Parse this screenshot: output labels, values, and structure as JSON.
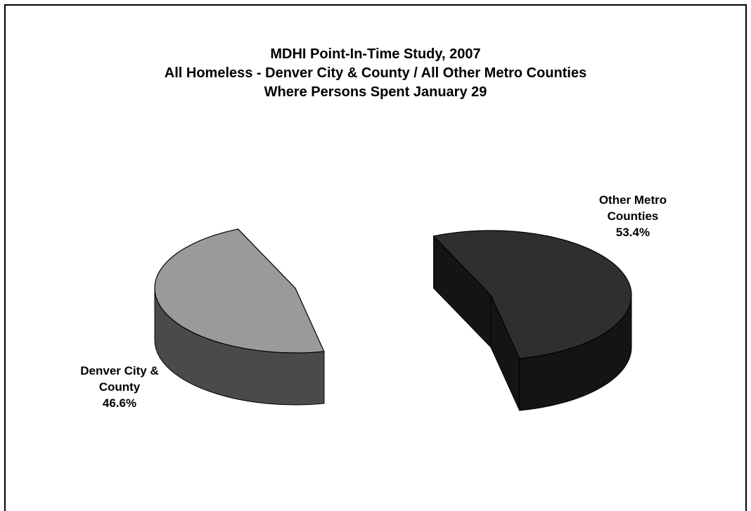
{
  "chart_data": {
    "type": "pie",
    "title_lines": [
      "MDHI Point-In-Time Study, 2007",
      "All Homeless - Denver City & County / All Other Metro Counties",
      "Where Persons Spent January 29"
    ],
    "slices": [
      {
        "label_lines": [
          "Denver City &",
          "County"
        ],
        "value": 46.6,
        "value_label": "46.6%",
        "color": "#9a9a9a",
        "side_color": "#4a4a4a"
      },
      {
        "label_lines": [
          "Other Metro",
          "Counties"
        ],
        "value": 53.4,
        "value_label": "53.4%",
        "color": "#2f2f2f",
        "side_color": "#141414"
      }
    ],
    "exploded": true,
    "three_d": true
  }
}
